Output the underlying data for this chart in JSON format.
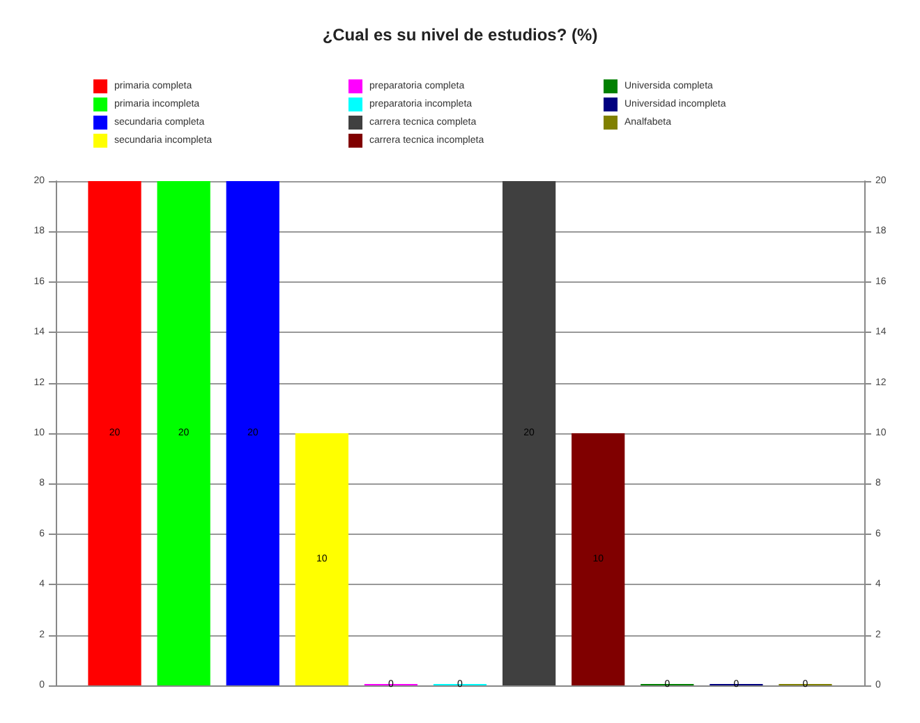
{
  "chart_data": {
    "type": "bar",
    "title": "¿Cual es su nivel de estudios? (%)",
    "categories": [
      null
    ],
    "series": [
      {
        "name": "primaria completa",
        "color": "#ff0000",
        "values": [
          20
        ]
      },
      {
        "name": "primaria incompleta",
        "color": "#00ff00",
        "values": [
          20
        ]
      },
      {
        "name": "secundaria completa",
        "color": "#0000ff",
        "values": [
          20
        ]
      },
      {
        "name": "secundaria incompleta",
        "color": "#ffff00",
        "values": [
          10
        ]
      },
      {
        "name": "preparatoria completa",
        "color": "#ff00ff",
        "values": [
          0
        ]
      },
      {
        "name": "preparatoria incompleta",
        "color": "#00ffff",
        "values": [
          0
        ]
      },
      {
        "name": "carrera tecnica completa",
        "color": "#404040",
        "values": [
          20
        ]
      },
      {
        "name": "carrera tecnica incompleta",
        "color": "#800000",
        "values": [
          10
        ]
      },
      {
        "name": "Universida completa",
        "color": "#008000",
        "values": [
          0
        ]
      },
      {
        "name": "Universidad incompleta",
        "color": "#000080",
        "values": [
          0
        ]
      },
      {
        "name": "Analfabeta",
        "color": "#808000",
        "values": [
          0
        ]
      }
    ],
    "ylim": [
      0,
      20
    ],
    "yticks": [
      0,
      2,
      4,
      6,
      8,
      10,
      12,
      14,
      16,
      18,
      20
    ],
    "y2lim": [
      0,
      20
    ],
    "y2ticks": [
      0,
      2,
      4,
      6,
      8,
      10,
      12,
      14,
      16,
      18,
      20
    ],
    "grid": "y",
    "legend": "top",
    "data_labels": true
  }
}
